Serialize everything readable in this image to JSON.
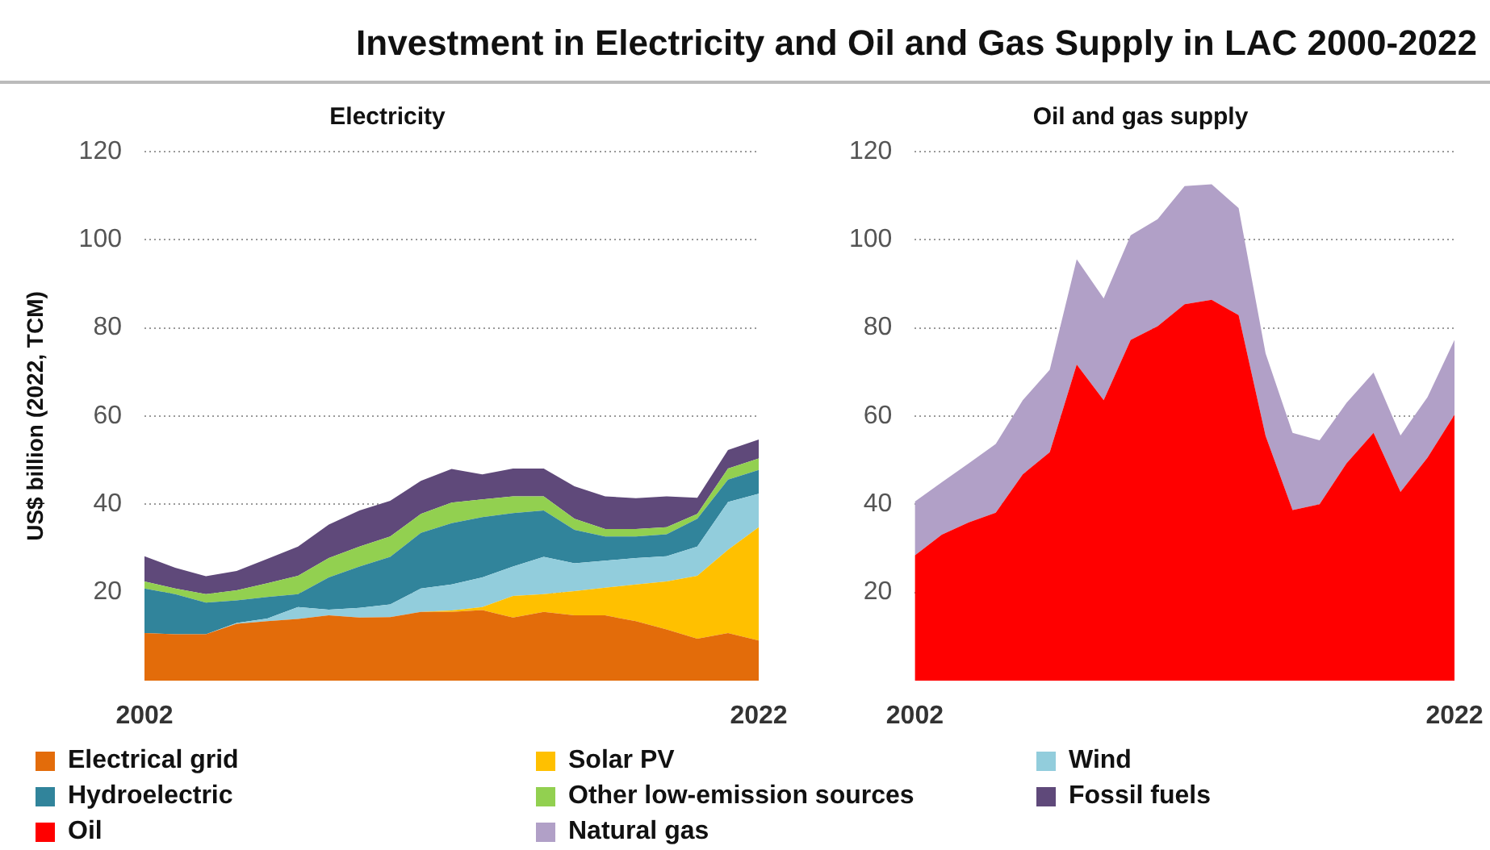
{
  "chart_data": [
    {
      "type": "area",
      "title": "Investment in Electricity and Oil and Gas Supply in LAC 2000-2022",
      "subtitle": "Electricity",
      "ylabel": "US$ billion (2022, TCM)",
      "stacked": true,
      "grid": "y",
      "legend": "bottom",
      "categories": [
        "2002",
        null,
        null,
        null,
        null,
        null,
        null,
        null,
        null,
        null,
        null,
        null,
        null,
        null,
        null,
        null,
        null,
        null,
        null,
        null,
        "2022"
      ],
      "ylim": [
        0,
        120
      ],
      "yticks": [
        20,
        40,
        60,
        80,
        100,
        120
      ],
      "series": [
        {
          "name": "Electrical grid",
          "color": "#e36c0a",
          "values": [
            10.8,
            10.5,
            10.5,
            12.9,
            13.5,
            14,
            14.8,
            14.3,
            14.4,
            15.6,
            15.6,
            16,
            14.3,
            15.6,
            14.8,
            14.8,
            13.5,
            11.6,
            9.5,
            10.8,
            9.1
          ]
        },
        {
          "name": "Solar PV",
          "color": "#ffc000",
          "values": [
            0,
            0,
            0,
            0,
            0,
            0,
            0,
            0,
            0,
            0,
            0.3,
            0.7,
            4.9,
            4,
            5.5,
            6.3,
            8.3,
            10.9,
            14.3,
            18.9,
            25.7
          ]
        },
        {
          "name": "Wind",
          "color": "#92cddc",
          "values": [
            0,
            0,
            0,
            0.2,
            0.6,
            2.7,
            1.3,
            2.2,
            2.9,
            5.3,
            5.9,
            6.7,
            6.7,
            8.5,
            6.3,
            6.1,
            6,
            5.7,
            6.6,
            10.8,
            7.6
          ]
        },
        {
          "name": "Hydroelectric",
          "color": "#31849b",
          "values": [
            10.1,
            9.1,
            7.2,
            5.1,
            4.9,
            2.9,
            7.3,
            9.4,
            10.8,
            12.6,
            13.9,
            13.7,
            12.1,
            10.5,
            7.6,
            5.5,
            4.9,
            5,
            6.3,
            5.1,
            5.4
          ]
        },
        {
          "name": "Other low-emission sources",
          "color": "#92d050",
          "values": [
            1.6,
            1.3,
            1.9,
            2.3,
            3.1,
            4.2,
            4.4,
            4.5,
            4.6,
            4.3,
            4.7,
            4,
            3.8,
            3.2,
            2.5,
            1.7,
            1.7,
            1.6,
            1.1,
            2.5,
            2.6
          ]
        },
        {
          "name": "Fossil fuels",
          "color": "#5f497a",
          "values": [
            5.7,
            4.7,
            4.1,
            4.4,
            5.5,
            6.6,
            7.6,
            8.2,
            8.1,
            7.5,
            7.6,
            5.7,
            6.3,
            6.3,
            7.4,
            7.4,
            7,
            7,
            3.7,
            4.2,
            4.3
          ]
        }
      ]
    },
    {
      "type": "area",
      "title": "Oil and gas supply",
      "stacked": true,
      "grid": "y",
      "legend": "bottom",
      "categories": [
        "2002",
        null,
        null,
        null,
        null,
        null,
        null,
        null,
        null,
        null,
        null,
        null,
        null,
        null,
        null,
        null,
        null,
        null,
        null,
        null,
        "2022"
      ],
      "ylim": [
        0,
        120
      ],
      "yticks": [
        20,
        40,
        60,
        80,
        100,
        120
      ],
      "series": [
        {
          "name": "Oil",
          "color": "#ff0000",
          "values": [
            28.4,
            33.1,
            35.9,
            38.1,
            46.8,
            51.8,
            71.7,
            63.6,
            77.3,
            80.4,
            85.4,
            86.4,
            82.9,
            55.5,
            38.7,
            40,
            49.3,
            56.2,
            42.8,
            50.6,
            60.3
          ]
        },
        {
          "name": "Natural gas",
          "color": "#b1a0c7",
          "values": [
            12.2,
            11.9,
            13.4,
            15.6,
            16.8,
            18.7,
            23.9,
            23.1,
            23.7,
            24.3,
            26.8,
            26.2,
            24.3,
            18.7,
            17.5,
            14.5,
            13.7,
            13.7,
            12.8,
            13.7,
            17
          ]
        }
      ]
    }
  ]
}
